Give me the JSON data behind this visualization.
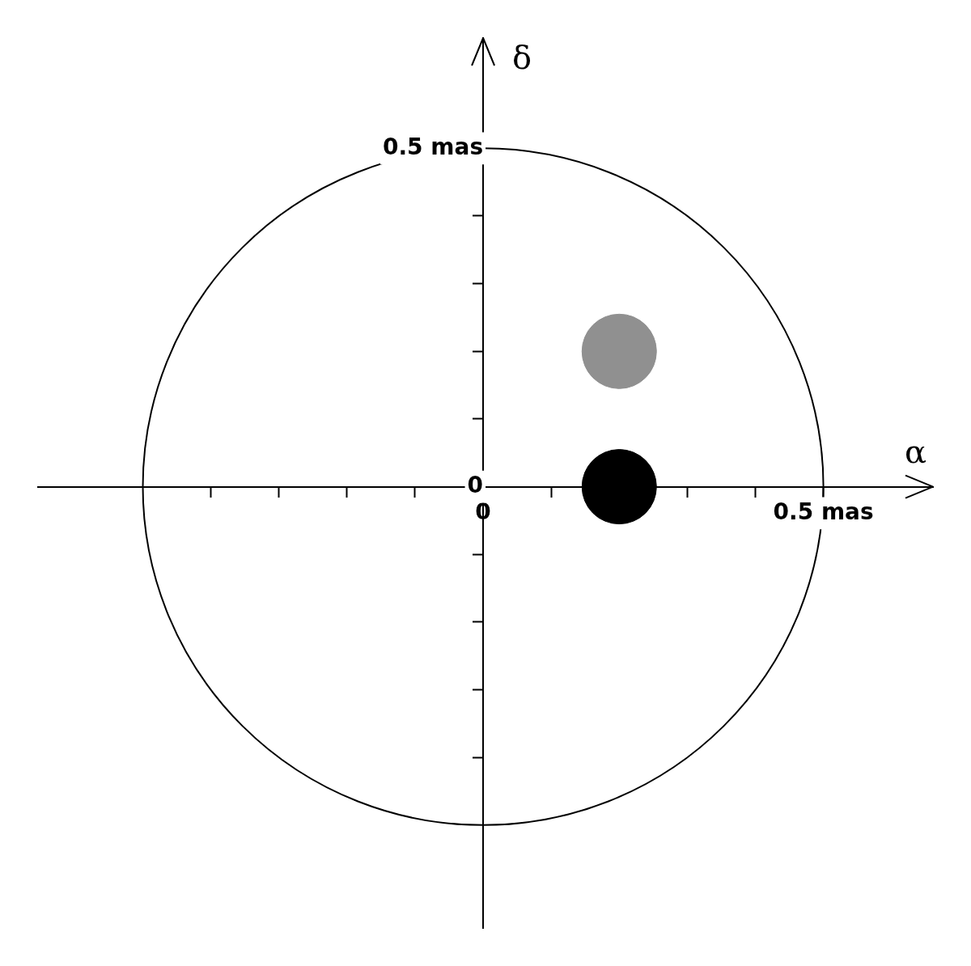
{
  "chart_data": {
    "type": "scatter",
    "xlabel": "α",
    "ylabel": "δ",
    "xlim": [
      -0.654,
      0.661
    ],
    "ylim": [
      -0.652,
      0.663
    ],
    "xticks": [
      {
        "value": -0.4,
        "label": null
      },
      {
        "value": -0.3,
        "label": null
      },
      {
        "value": -0.2,
        "label": null
      },
      {
        "value": -0.1,
        "label": null
      },
      {
        "value": 0,
        "label": "0"
      },
      {
        "value": 0.1,
        "label": null
      },
      {
        "value": 0.2,
        "label": null
      },
      {
        "value": 0.3,
        "label": null
      },
      {
        "value": 0.4,
        "label": null
      },
      {
        "value": 0.5,
        "label": "0.5 mas"
      }
    ],
    "yticks": [
      {
        "value": -0.4,
        "label": null
      },
      {
        "value": -0.3,
        "label": null
      },
      {
        "value": -0.2,
        "label": null
      },
      {
        "value": -0.1,
        "label": null
      },
      {
        "value": 0,
        "label": "0"
      },
      {
        "value": 0.1,
        "label": null
      },
      {
        "value": 0.2,
        "label": null
      },
      {
        "value": 0.3,
        "label": null
      },
      {
        "value": 0.4,
        "label": null
      },
      {
        "value": 0.5,
        "label": "0.5 mas"
      }
    ],
    "series": [
      {
        "color": "#000000",
        "x": [
          0.2
        ],
        "values": [
          0
        ]
      },
      {
        "color": "#909090",
        "x": [
          0.2
        ],
        "values": [
          0.2
        ]
      }
    ],
    "marker": "circle",
    "legend": false,
    "grid": false
  }
}
